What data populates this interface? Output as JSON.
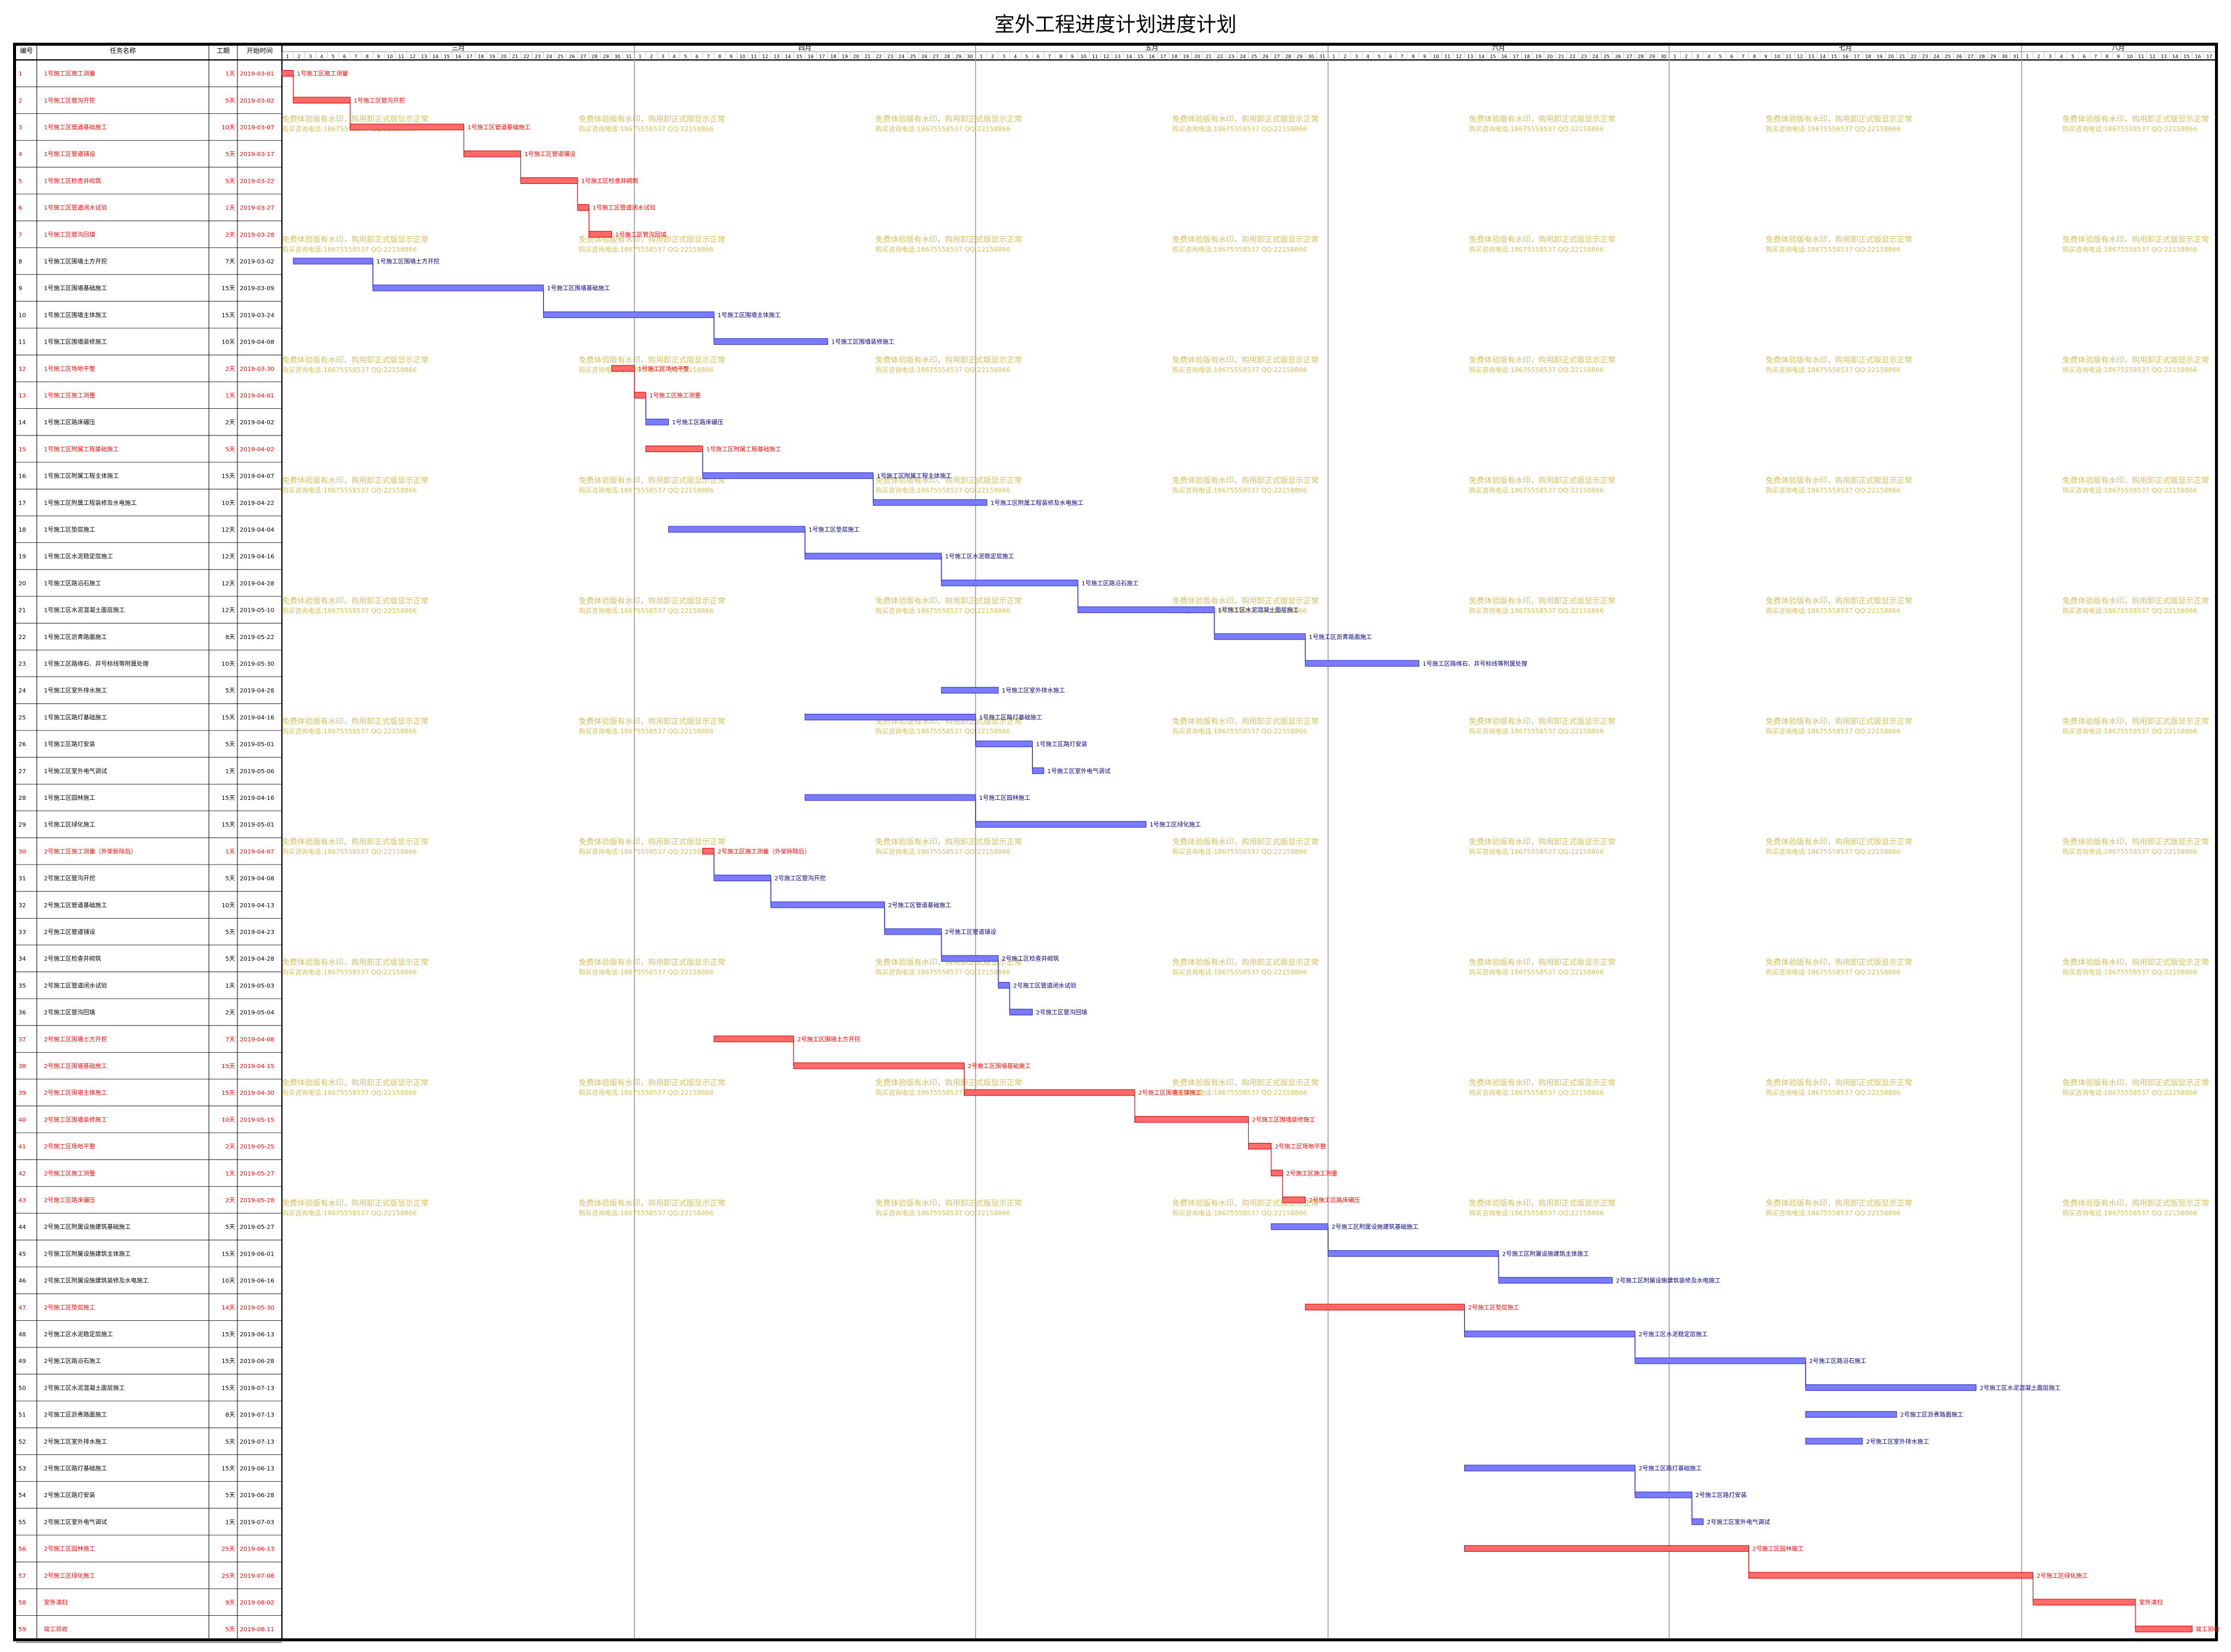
{
  "title": "室外工程进度计划进度计划",
  "columns": {
    "id": "编号",
    "name": "任务名称",
    "duration": "工期",
    "start": "开始时间"
  },
  "months": [
    {
      "label": "三月",
      "days": 31
    },
    {
      "label": "四月",
      "days": 30
    },
    {
      "label": "五月",
      "days": 31
    },
    {
      "label": "六月",
      "days": 30
    },
    {
      "label": "七月",
      "days": 31
    },
    {
      "label": "八月",
      "days": 17
    }
  ],
  "watermark": {
    "line1": "免费体验版有水印，购用卸正式版显示正常",
    "line2": "购买咨询电话:18675558537 QQ:22158866"
  },
  "colors": {
    "critical": "#ff6a6a",
    "normal": "#7b7bff",
    "critical_text": "#ff0000",
    "normal_text": "#000000",
    "link_critical": "#ff0000",
    "link_normal": "#0000ff",
    "watermark": "#d4c05a"
  },
  "chart_data": {
    "type": "gantt",
    "year": 2019,
    "tasks": [
      {
        "id": "1",
        "name": "1号施工区施工测量",
        "duration": "1天",
        "start": "2019-03-01",
        "critical": true
      },
      {
        "id": "2",
        "name": "1号施工区管沟开挖",
        "duration": "5天",
        "start": "2019-03-02",
        "critical": true
      },
      {
        "id": "3",
        "name": "1号施工区管道基础施工",
        "duration": "10天",
        "start": "2019-03-07",
        "critical": true
      },
      {
        "id": "4",
        "name": "1号施工区管道铺设",
        "duration": "5天",
        "start": "2019-03-17",
        "critical": true
      },
      {
        "id": "5",
        "name": "1号施工区检查井砌筑",
        "duration": "5天",
        "start": "2019-03-22",
        "critical": true
      },
      {
        "id": "6",
        "name": "1号施工区管道闭水试验",
        "duration": "1天",
        "start": "2019-03-27",
        "critical": true
      },
      {
        "id": "7",
        "name": "1号施工区管沟回填",
        "duration": "2天",
        "start": "2019-03-28",
        "critical": true
      },
      {
        "id": "8",
        "name": "1号施工区围墙土方开挖",
        "duration": "7天",
        "start": "2019-03-02",
        "critical": false
      },
      {
        "id": "9",
        "name": "1号施工区围墙基础施工",
        "duration": "15天",
        "start": "2019-03-09",
        "critical": false
      },
      {
        "id": "10",
        "name": "1号施工区围墙主体施工",
        "duration": "15天",
        "start": "2019-03-24",
        "critical": false
      },
      {
        "id": "11",
        "name": "1号施工区围墙装修施工",
        "duration": "10天",
        "start": "2019-04-08",
        "critical": false
      },
      {
        "id": "12",
        "name": "1号施工区场地平整",
        "duration": "2天",
        "start": "2019-03-30",
        "critical": true
      },
      {
        "id": "13",
        "name": "1号施工区施工测量",
        "duration": "1天",
        "start": "2019-04-01",
        "critical": true
      },
      {
        "id": "14",
        "name": "1号施工区路床碾压",
        "duration": "2天",
        "start": "2019-04-02",
        "critical": false
      },
      {
        "id": "15",
        "name": "1号施工区附属工程基础施工",
        "duration": "5天",
        "start": "2019-04-02",
        "critical": true
      },
      {
        "id": "16",
        "name": "1号施工区附属工程主体施工",
        "duration": "15天",
        "start": "2019-04-07",
        "critical": false
      },
      {
        "id": "17",
        "name": "1号施工区附属工程装修及水电施工",
        "duration": "10天",
        "start": "2019-04-22",
        "critical": false
      },
      {
        "id": "18",
        "name": "1号施工区垫层施工",
        "duration": "12天",
        "start": "2019-04-04",
        "critical": false
      },
      {
        "id": "19",
        "name": "1号施工区水泥稳定层施工",
        "duration": "12天",
        "start": "2019-04-16",
        "critical": false
      },
      {
        "id": "20",
        "name": "1号施工区路沿石施工",
        "duration": "12天",
        "start": "2019-04-28",
        "critical": false
      },
      {
        "id": "21",
        "name": "1号施工区水泥混凝土面层施工",
        "duration": "12天",
        "start": "2019-05-10",
        "critical": false
      },
      {
        "id": "22",
        "name": "1号施工区沥青路面施工",
        "duration": "8天",
        "start": "2019-05-22",
        "critical": false
      },
      {
        "id": "23",
        "name": "1号施工区路缘石、井号标线等附属处理",
        "duration": "10天",
        "start": "2019-05-30",
        "critical": false
      },
      {
        "id": "24",
        "name": "1号施工区室外排水施工",
        "duration": "5天",
        "start": "2019-04-28",
        "critical": false
      },
      {
        "id": "25",
        "name": "1号施工区路灯基础施工",
        "duration": "15天",
        "start": "2019-04-16",
        "critical": false
      },
      {
        "id": "26",
        "name": "1号施工区路灯安装",
        "duration": "5天",
        "start": "2019-05-01",
        "critical": false
      },
      {
        "id": "27",
        "name": "1号施工区室外电气调试",
        "duration": "1天",
        "start": "2019-05-06",
        "critical": false
      },
      {
        "id": "28",
        "name": "1号施工区园林施工",
        "duration": "15天",
        "start": "2019-04-16",
        "critical": false
      },
      {
        "id": "29",
        "name": "1号施工区绿化施工",
        "duration": "15天",
        "start": "2019-05-01",
        "critical": false
      },
      {
        "id": "30",
        "name": "2号施工区施工测量（外架拆除后）",
        "duration": "1天",
        "start": "2019-04-07",
        "critical": true
      },
      {
        "id": "31",
        "name": "2号施工区管沟开挖",
        "duration": "5天",
        "start": "2019-04-08",
        "critical": false
      },
      {
        "id": "32",
        "name": "2号施工区管道基础施工",
        "duration": "10天",
        "start": "2019-04-13",
        "critical": false
      },
      {
        "id": "33",
        "name": "2号施工区管道铺设",
        "duration": "5天",
        "start": "2019-04-23",
        "critical": false
      },
      {
        "id": "34",
        "name": "2号施工区检查井砌筑",
        "duration": "5天",
        "start": "2019-04-28",
        "critical": false
      },
      {
        "id": "35",
        "name": "2号施工区管道闭水试验",
        "duration": "1天",
        "start": "2019-05-03",
        "critical": false
      },
      {
        "id": "36",
        "name": "2号施工区管沟回填",
        "duration": "2天",
        "start": "2019-05-04",
        "critical": false
      },
      {
        "id": "37",
        "name": "2号施工区围墙土方开挖",
        "duration": "7天",
        "start": "2019-04-08",
        "critical": true
      },
      {
        "id": "38",
        "name": "2号施工区围墙基础施工",
        "duration": "15天",
        "start": "2019-04-15",
        "critical": true
      },
      {
        "id": "39",
        "name": "2号施工区围墙主体施工",
        "duration": "15天",
        "start": "2019-04-30",
        "critical": true
      },
      {
        "id": "40",
        "name": "2号施工区围墙装修施工",
        "duration": "10天",
        "start": "2019-05-15",
        "critical": true
      },
      {
        "id": "41",
        "name": "2号施工区场地平整",
        "duration": "2天",
        "start": "2019-05-25",
        "critical": true
      },
      {
        "id": "42",
        "name": "2号施工区施工测量",
        "duration": "1天",
        "start": "2019-05-27",
        "critical": true
      },
      {
        "id": "43",
        "name": "2号施工区路床碾压",
        "duration": "2天",
        "start": "2019-05-28",
        "critical": true
      },
      {
        "id": "44",
        "name": "2号施工区附属设施建筑基础施工",
        "duration": "5天",
        "start": "2019-05-27",
        "critical": false
      },
      {
        "id": "45",
        "name": "2号施工区附属设施建筑主体施工",
        "duration": "15天",
        "start": "2019-06-01",
        "critical": false
      },
      {
        "id": "46",
        "name": "2号施工区附属设施建筑装修及水电施工",
        "duration": "10天",
        "start": "2019-06-16",
        "critical": false
      },
      {
        "id": "47",
        "name": "2号施工区垫层施工",
        "duration": "14天",
        "start": "2019-05-30",
        "critical": true
      },
      {
        "id": "48",
        "name": "2号施工区水泥稳定层施工",
        "duration": "15天",
        "start": "2019-06-13",
        "critical": false
      },
      {
        "id": "49",
        "name": "2号施工区路沿石施工",
        "duration": "15天",
        "start": "2019-06-28",
        "critical": false
      },
      {
        "id": "50",
        "name": "2号施工区水泥混凝土面层施工",
        "duration": "15天",
        "start": "2019-07-13",
        "critical": false
      },
      {
        "id": "51",
        "name": "2号施工区沥青路面施工",
        "duration": "8天",
        "start": "2019-07-13",
        "critical": false
      },
      {
        "id": "52",
        "name": "2号施工区室外排水施工",
        "duration": "5天",
        "start": "2019-07-13",
        "critical": false
      },
      {
        "id": "53",
        "name": "2号施工区路灯基础施工",
        "duration": "15天",
        "start": "2019-06-13",
        "critical": false
      },
      {
        "id": "54",
        "name": "2号施工区路灯安装",
        "duration": "5天",
        "start": "2019-06-28",
        "critical": false
      },
      {
        "id": "55",
        "name": "2号施工区室外电气调试",
        "duration": "1天",
        "start": "2019-07-03",
        "critical": false
      },
      {
        "id": "56",
        "name": "2号施工区园林施工",
        "duration": "25天",
        "start": "2019-06-13",
        "critical": true
      },
      {
        "id": "57",
        "name": "2号施工区绿化施工",
        "duration": "25天",
        "start": "2019-07-08",
        "critical": true
      },
      {
        "id": "58",
        "name": "室外清扫",
        "duration": "9天",
        "start": "2019-08-02",
        "critical": true
      },
      {
        "id": "59",
        "name": "竣工验收",
        "duration": "5天",
        "start": "2019-08-11",
        "critical": true
      }
    ]
  }
}
